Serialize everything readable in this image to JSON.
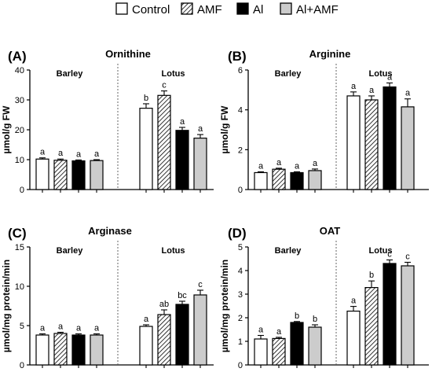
{
  "legend": {
    "items": [
      {
        "label": "Control",
        "fill": "white"
      },
      {
        "label": "AMF",
        "fill": "hatch"
      },
      {
        "label": "Al",
        "fill": "#000000"
      },
      {
        "label": "Al+AMF",
        "fill": "#cccccc"
      }
    ]
  },
  "chart_data": [
    {
      "type": "bar",
      "panel": "(A)",
      "title": "Ornithine",
      "ylabel": "µmol/g FW",
      "ylim": [
        0,
        40
      ],
      "yticks": [
        0,
        10,
        20,
        30,
        40
      ],
      "groups": [
        "Barley",
        "Lotus"
      ],
      "series": [
        {
          "name": "Control",
          "values": [
            10.2,
            27.2
          ],
          "errors": [
            0.4,
            1.5
          ]
        },
        {
          "name": "AMF",
          "values": [
            9.8,
            31.5
          ],
          "errors": [
            0.4,
            1.5
          ]
        },
        {
          "name": "Al",
          "values": [
            9.6,
            19.8
          ],
          "errors": [
            0.3,
            1.0
          ]
        },
        {
          "name": "Al+AMF",
          "values": [
            9.7,
            17.2
          ],
          "errors": [
            0.3,
            1.2
          ]
        }
      ],
      "letters": [
        [
          "a",
          "a",
          "a",
          "a"
        ],
        [
          "b",
          "c",
          "a",
          "a"
        ]
      ]
    },
    {
      "type": "bar",
      "panel": "(B)",
      "title": "Arginine",
      "ylabel": "µmol/g FW",
      "ylim": [
        0,
        6
      ],
      "yticks": [
        0,
        2,
        4,
        6
      ],
      "groups": [
        "Barley",
        "Lotus"
      ],
      "series": [
        {
          "name": "Control",
          "values": [
            0.85,
            4.7
          ],
          "errors": [
            0.04,
            0.2
          ]
        },
        {
          "name": "AMF",
          "values": [
            1.02,
            4.5
          ],
          "errors": [
            0.05,
            0.2
          ]
        },
        {
          "name": "Al",
          "values": [
            0.85,
            5.15
          ],
          "errors": [
            0.04,
            0.2
          ]
        },
        {
          "name": "Al+AMF",
          "values": [
            0.95,
            4.15
          ],
          "errors": [
            0.08,
            0.4
          ]
        }
      ],
      "letters": [
        [
          "a",
          "a",
          "a",
          "a"
        ],
        [
          "a",
          "a",
          "a",
          "a"
        ]
      ]
    },
    {
      "type": "bar",
      "panel": "(C)",
      "title": "Arginase",
      "ylabel": "µmol/mg protein/min",
      "ylim": [
        0,
        15
      ],
      "yticks": [
        0,
        5,
        10,
        15
      ],
      "groups": [
        "Barley",
        "Lotus"
      ],
      "series": [
        {
          "name": "Control",
          "values": [
            3.8,
            4.9
          ],
          "errors": [
            0.15,
            0.2
          ]
        },
        {
          "name": "AMF",
          "values": [
            4.0,
            6.4
          ],
          "errors": [
            0.15,
            0.6
          ]
        },
        {
          "name": "Al",
          "values": [
            3.8,
            7.7
          ],
          "errors": [
            0.15,
            0.4
          ]
        },
        {
          "name": "Al+AMF",
          "values": [
            3.8,
            8.9
          ],
          "errors": [
            0.15,
            0.6
          ]
        }
      ],
      "letters": [
        [
          "a",
          "a",
          "a",
          "a"
        ],
        [
          "a",
          "ab",
          "bc",
          "c"
        ]
      ]
    },
    {
      "type": "bar",
      "panel": "(D)",
      "title": "OAT",
      "ylabel": "µmol/mg protein/min",
      "ylim": [
        0,
        5
      ],
      "yticks": [
        0,
        1,
        2,
        3,
        4,
        5
      ],
      "groups": [
        "Barley",
        "Lotus"
      ],
      "series": [
        {
          "name": "Control",
          "values": [
            1.1,
            2.28
          ],
          "errors": [
            0.15,
            0.2
          ]
        },
        {
          "name": "AMF",
          "values": [
            1.12,
            3.28
          ],
          "errors": [
            0.05,
            0.28
          ]
        },
        {
          "name": "Al",
          "values": [
            1.8,
            4.3
          ],
          "errors": [
            0.04,
            0.15
          ]
        },
        {
          "name": "Al+AMF",
          "values": [
            1.6,
            4.2
          ],
          "errors": [
            0.1,
            0.15
          ]
        }
      ],
      "letters": [
        [
          "a",
          "a",
          "b",
          "b"
        ],
        [
          "a",
          "b",
          "c",
          "c"
        ]
      ]
    }
  ]
}
